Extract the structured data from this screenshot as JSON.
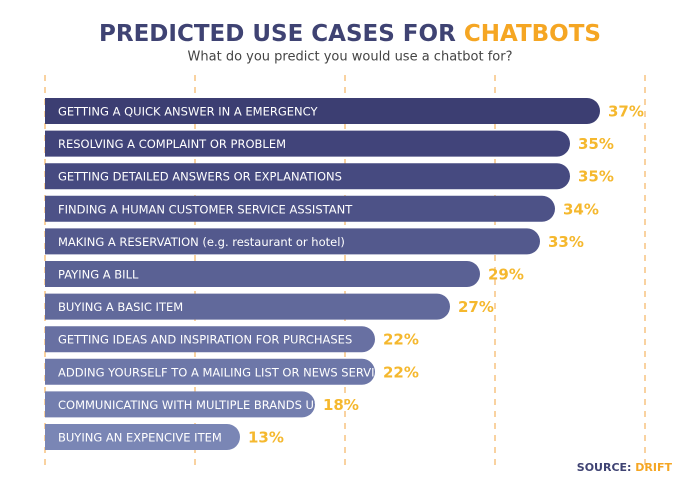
{
  "chart_data": {
    "type": "hbar",
    "title": "PREDICTED USE CASES FOR",
    "title_highlight": "CHATBOTS",
    "subtitle": "What do you predict you would use a chatbot for?",
    "categories": [
      "GETTING A QUICK ANSWER IN A EMERGENCY",
      "RESOLVING A COMPLAINT OR PROBLEM",
      "GETTING DETAILED ANSWERS OR EXPLANATIONS",
      "FINDING A HUMAN CUSTOMER SERVICE ASSISTANT",
      "MAKING A RESERVATION (e.g. restaurant or hotel)",
      "PAYING A BILL",
      "BUYING A BASIC ITEM",
      "GETTING IDEAS AND INSPIRATION FOR PURCHASES",
      "ADDING YOURSELF TO A MAILING LIST OR NEWS SERVICE",
      "COMMUNICATING WITH MULTIPLE BRANDS USING ONE PROGRAM",
      "BUYING AN EXPENCIVE ITEM"
    ],
    "values": [
      37,
      35,
      35,
      34,
      33,
      29,
      27,
      22,
      22,
      18,
      13
    ],
    "value_labels": [
      "37%",
      "35%",
      "35%",
      "34%",
      "33%",
      "29%",
      "27%",
      "22%",
      "22%",
      "18%",
      "13%"
    ],
    "colors": [
      "#3c3e72",
      "#41447a",
      "#464a80",
      "#4d5287",
      "#53598d",
      "#5a6194",
      "#61699b",
      "#6870a2",
      "#6d77a8",
      "#737eae",
      "#7a86b5"
    ],
    "label_color": "#f5b82e",
    "xlim": [
      0,
      40
    ],
    "xticks": [
      0,
      10,
      20,
      30,
      40
    ],
    "grid": true,
    "source_label": "SOURCE:",
    "source": "DRIFT"
  }
}
